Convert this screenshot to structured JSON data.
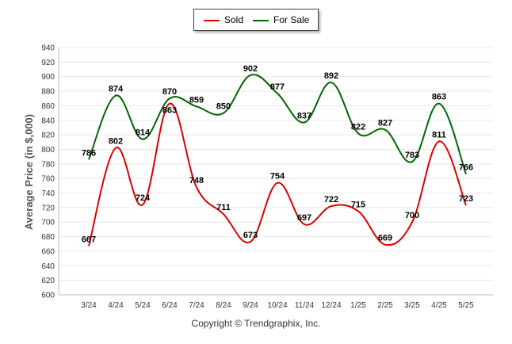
{
  "chart_data": {
    "type": "line",
    "categories": [
      "3/24",
      "4/24",
      "5/24",
      "6/24",
      "7/24",
      "8/24",
      "9/24",
      "10/24",
      "11/24",
      "12/24",
      "1/25",
      "2/25",
      "3/25",
      "4/25",
      "5/25"
    ],
    "series": [
      {
        "name": "Sold",
        "color": "#dd0000",
        "values": [
          667,
          802,
          724,
          863,
          748,
          711,
          673,
          754,
          697,
          722,
          715,
          669,
          700,
          811,
          723
        ]
      },
      {
        "name": "For Sale",
        "color": "#006600",
        "values": [
          786,
          874,
          814,
          870,
          859,
          850,
          902,
          877,
          837,
          892,
          822,
          827,
          783,
          863,
          766
        ]
      }
    ],
    "ylabel": "Average Price (in $,000)",
    "ylim": [
      600,
      940
    ],
    "ytick_step": 20,
    "grid": true,
    "legend_position": "top-center"
  },
  "legend": {
    "sold_label": "Sold",
    "forsale_label": "For Sale"
  },
  "footer": "Copyright © Trendgraphix, Inc."
}
